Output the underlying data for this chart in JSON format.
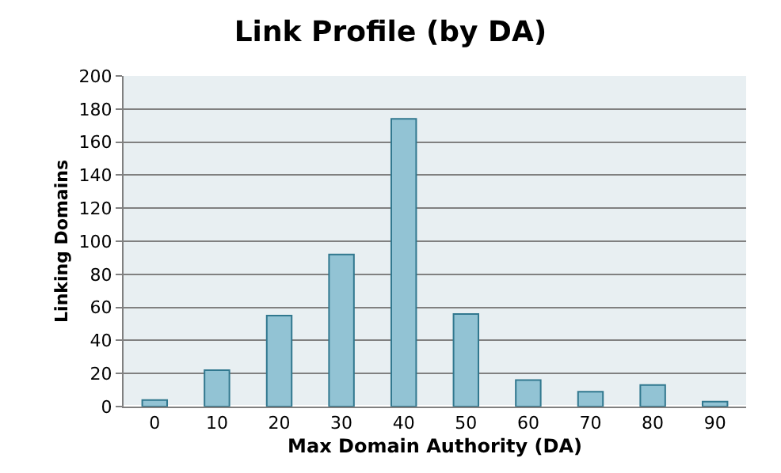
{
  "chart_data": {
    "type": "bar",
    "title": "Link Profile (by DA)",
    "xlabel": "Max Domain Authority (DA)",
    "ylabel": "Linking Domains",
    "categories": [
      "0",
      "10",
      "20",
      "30",
      "40",
      "50",
      "60",
      "70",
      "80",
      "90"
    ],
    "values": [
      4,
      22,
      55,
      92,
      174,
      56,
      16,
      9,
      13,
      3
    ],
    "color": "#92c3d4",
    "ylim": [
      0,
      200
    ],
    "yticks": [
      0,
      20,
      40,
      60,
      80,
      100,
      120,
      140,
      160,
      180,
      200
    ],
    "grid": "y",
    "legend": false
  }
}
